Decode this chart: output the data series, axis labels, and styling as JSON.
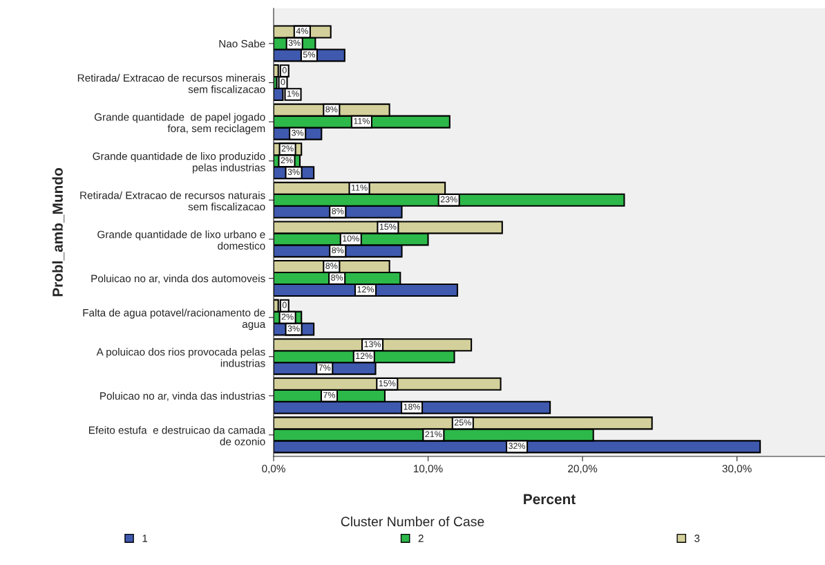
{
  "chart_data": {
    "type": "bar",
    "orientation": "horizontal",
    "categories": [
      "Nao Sabe",
      "Retirada/ Extracao de recursos minerais\nsem fiscalizacao",
      "Grande quantidade  de papel jogado\nfora, sem reciclagem",
      "Grande quantidade de lixo produzido\npelas industrias",
      "Retirada/ Extracao de recursos naturais\nsem fiscalizacao",
      "Grande quantidade de lixo urbano e\ndomestico",
      "Poluicao no ar, vinda dos automoveis",
      "Falta de agua potavel/racionamento de\nagua",
      "A poluicao dos rios provocada pelas\nindustrias",
      "Poluicao no ar, vinda das industrias",
      "Efeito estufa  e destruicao da camada\nde ozonio"
    ],
    "series": [
      {
        "name": "1",
        "color": "#3e59ae",
        "values": [
          4.6,
          0.6,
          3.1,
          2.6,
          8.3,
          8.3,
          11.9,
          2.6,
          6.6,
          17.9,
          31.5
        ],
        "value_labels": [
          "5%",
          "1%",
          "3%",
          "3%",
          "8%",
          "8%",
          "12%",
          "3%",
          "7%",
          "18%",
          "32%"
        ]
      },
      {
        "name": "2",
        "color": "#2db84a",
        "values": [
          2.7,
          0.2,
          11.4,
          1.7,
          22.7,
          10.0,
          8.2,
          1.8,
          11.7,
          7.2,
          20.7
        ],
        "value_labels": [
          "3%",
          "0",
          "11%",
          "2%",
          "23%",
          "10%",
          "8%",
          "2%",
          "12%",
          "7%",
          "21%"
        ]
      },
      {
        "name": "3",
        "color": "#d4d09b",
        "values": [
          3.7,
          0.3,
          7.5,
          1.8,
          11.1,
          14.8,
          7.5,
          0.3,
          12.8,
          14.7,
          24.5
        ],
        "value_labels": [
          "4%",
          "0",
          "8%",
          "2%",
          "11%",
          "15%",
          "8%",
          "0",
          "13%",
          "15%",
          "25%"
        ]
      }
    ],
    "xlim": [
      0,
      35.7
    ],
    "xticks": [
      {
        "value": 0,
        "label": "0,0%"
      },
      {
        "value": 10,
        "label": "10,0%"
      },
      {
        "value": 20,
        "label": "20,0%"
      },
      {
        "value": 30,
        "label": "30,0%"
      }
    ],
    "xlabel": "Percent",
    "ylabel": "Probl_amb_Mundo",
    "legend_title": "Cluster Number of Case",
    "legend": "bottom",
    "grid": false
  }
}
